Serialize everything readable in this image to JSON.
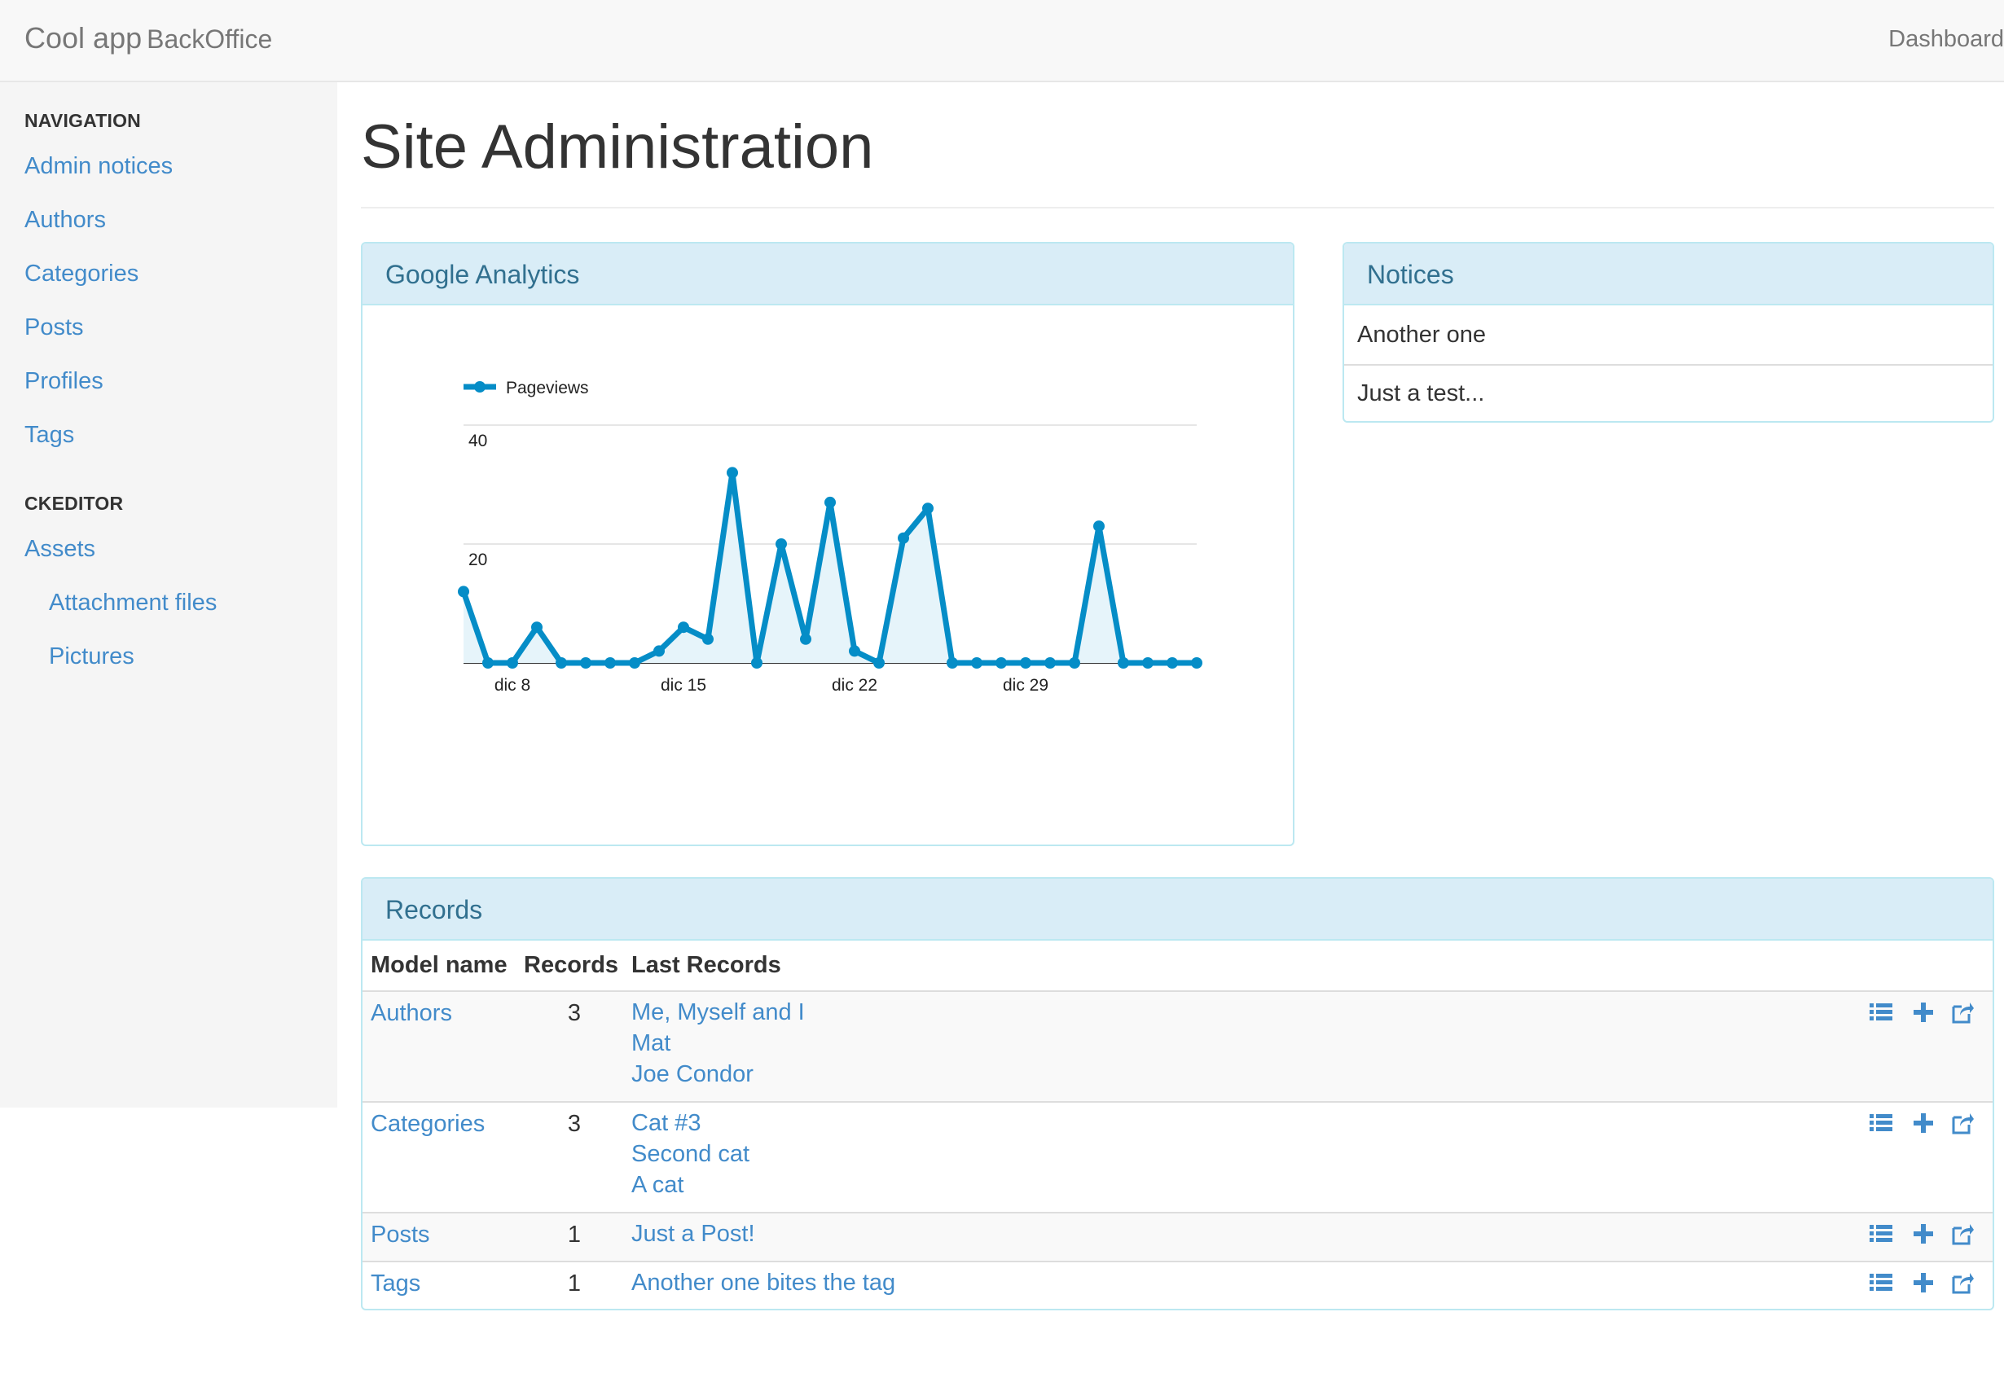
{
  "navbar": {
    "brand": "Cool app",
    "brand_sub": "BackOffice",
    "right_link": "Dashboard"
  },
  "sidebar": {
    "sections": [
      {
        "header": "NAVIGATION",
        "items": [
          "Admin notices",
          "Authors",
          "Categories",
          "Posts",
          "Profiles",
          "Tags"
        ]
      },
      {
        "header": "CKEDITOR",
        "items": [
          "Assets"
        ],
        "subitems": [
          "Attachment files",
          "Pictures"
        ]
      }
    ]
  },
  "page": {
    "title": "Site Administration"
  },
  "analytics": {
    "title": "Google Analytics"
  },
  "notices": {
    "title": "Notices",
    "items": [
      "Another one",
      "Just a test..."
    ]
  },
  "records": {
    "title": "Records",
    "columns": [
      "Model name",
      "Records",
      "Last Records"
    ],
    "rows": [
      {
        "model": "Authors",
        "count": "3",
        "last": [
          "Me, Myself and I",
          "Mat",
          "Joe Condor"
        ]
      },
      {
        "model": "Categories",
        "count": "3",
        "last": [
          "Cat #3",
          "Second cat",
          "A cat"
        ]
      },
      {
        "model": "Posts",
        "count": "1",
        "last": [
          "Just a Post!"
        ]
      },
      {
        "model": "Tags",
        "count": "1",
        "last": [
          "Another one bites the tag"
        ]
      }
    ],
    "action_icons": [
      "list-icon",
      "plus-icon",
      "share-icon"
    ]
  },
  "colors": {
    "link": "#428bca",
    "panel_heading_bg": "#d9edf7",
    "panel_heading_text": "#31708f",
    "series": "#058dc7",
    "series_fill": "#e6f4fa"
  },
  "chart_data": {
    "type": "area",
    "legend": [
      "Pageviews"
    ],
    "legend_position": "top-left",
    "x": [
      "dic 6",
      "dic 7",
      "dic 8",
      "dic 9",
      "dic 10",
      "dic 11",
      "dic 12",
      "dic 13",
      "dic 14",
      "dic 15",
      "dic 16",
      "dic 17",
      "dic 18",
      "dic 19",
      "dic 20",
      "dic 21",
      "dic 22",
      "dic 23",
      "dic 24",
      "dic 25",
      "dic 26",
      "dic 27",
      "dic 28",
      "dic 29",
      "dic 30",
      "dic 31",
      "gen 1",
      "gen 2",
      "gen 3",
      "gen 4",
      "gen 5"
    ],
    "x_tick_labels": [
      "dic 8",
      "dic 15",
      "dic 22",
      "dic 29"
    ],
    "series": [
      {
        "name": "Pageviews",
        "values": [
          12,
          0,
          0,
          6,
          0,
          0,
          0,
          0,
          2,
          6,
          4,
          32,
          0,
          20,
          4,
          27,
          2,
          0,
          21,
          26,
          0,
          0,
          0,
          0,
          0,
          0,
          23,
          0,
          0,
          0,
          0
        ]
      }
    ],
    "y_tick_labels": [
      "20",
      "40"
    ],
    "ylim": [
      0,
      40
    ],
    "grid": true
  }
}
